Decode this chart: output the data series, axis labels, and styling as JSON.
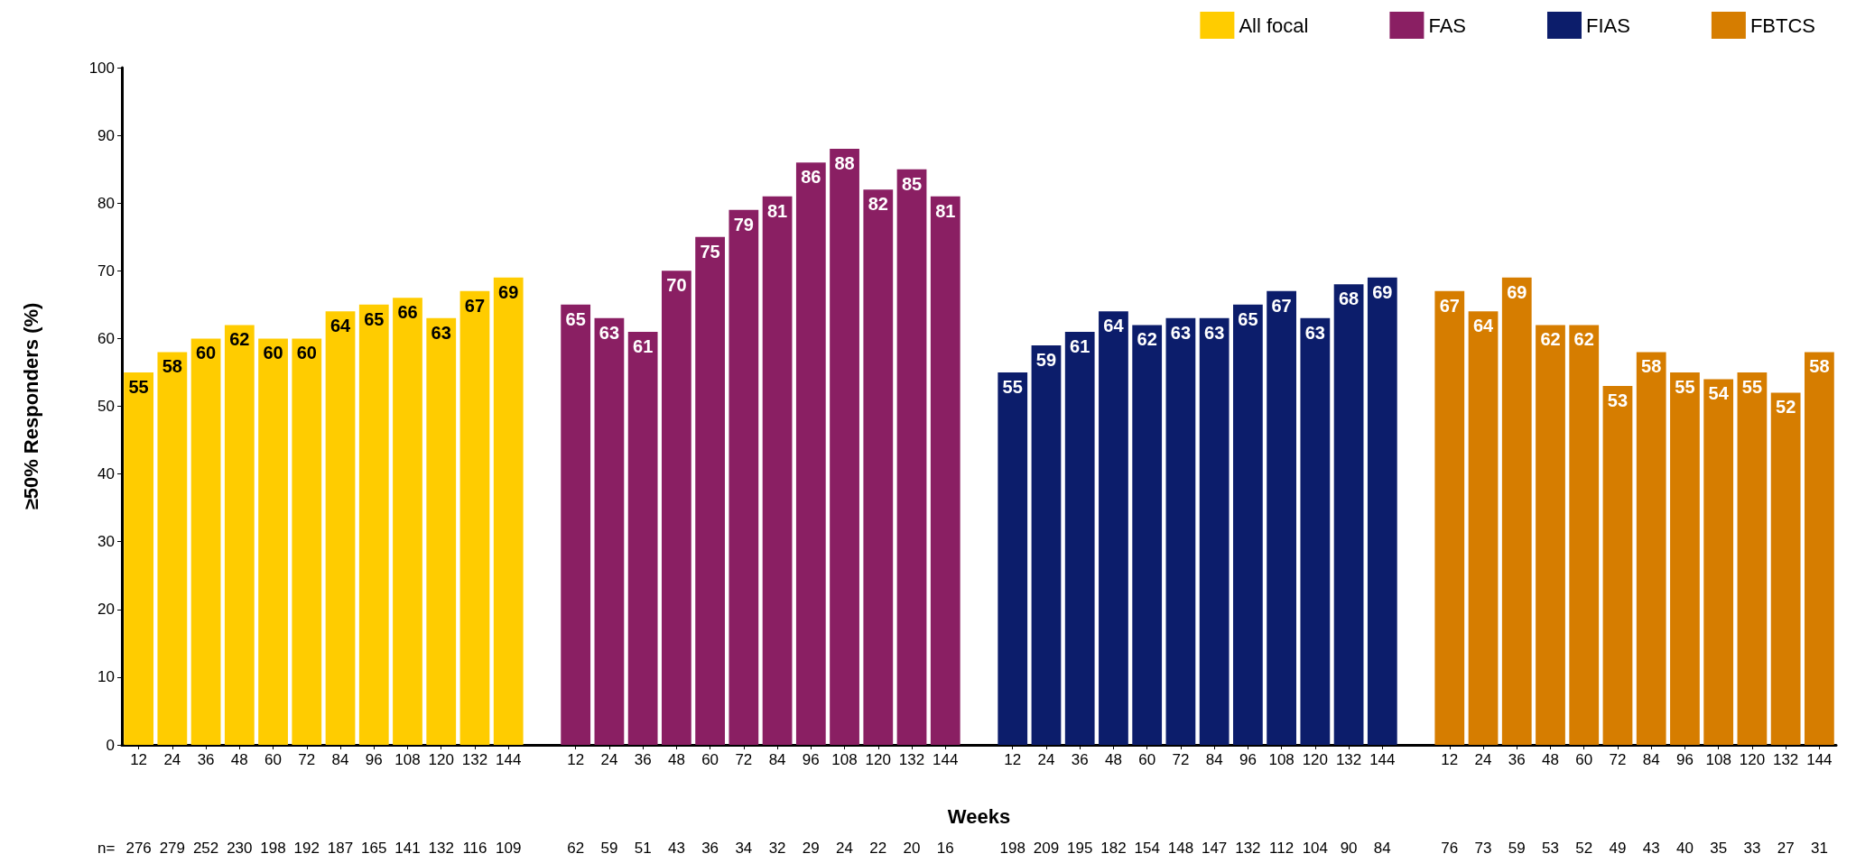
{
  "chart_data": {
    "type": "bar",
    "xlabel": "Weeks",
    "ylabel": "≥50% Responders (%)",
    "categories": [
      "12",
      "24",
      "36",
      "48",
      "60",
      "72",
      "84",
      "96",
      "108",
      "120",
      "132",
      "144",
      null,
      "12",
      "24",
      "36",
      "48",
      "60",
      "72",
      "84",
      "96",
      "108",
      "120",
      "132",
      "144",
      null,
      "12",
      "24",
      "36",
      "48",
      "60",
      "72",
      "84",
      "96",
      "108",
      "120",
      "132",
      "144",
      null,
      "12",
      "24",
      "36",
      "48",
      "60",
      "72",
      "84",
      "96",
      "108",
      "120",
      "132",
      "144"
    ],
    "series": [
      {
        "name": "All focal",
        "color": "#ffcc00",
        "values": [
          55,
          58,
          60,
          62,
          60,
          60,
          64,
          65,
          66,
          63,
          67,
          69,
          null,
          null,
          null,
          null,
          null,
          null,
          null,
          null,
          null,
          null,
          null,
          null,
          null,
          null,
          null,
          null,
          null,
          null,
          null,
          null,
          null,
          null,
          null,
          null,
          null,
          null,
          null,
          null,
          null,
          null,
          null,
          null,
          null,
          null,
          null,
          null,
          null,
          null,
          null
        ]
      },
      {
        "name": "FAS",
        "color": "#8a1f63",
        "values": [
          null,
          null,
          null,
          null,
          null,
          null,
          null,
          null,
          null,
          null,
          null,
          null,
          null,
          65,
          63,
          61,
          70,
          75,
          79,
          81,
          86,
          88,
          82,
          85,
          81,
          null,
          null,
          null,
          null,
          null,
          null,
          null,
          null,
          null,
          null,
          null,
          null,
          null,
          null,
          null,
          null,
          null,
          null,
          null,
          null,
          null,
          null,
          null,
          null,
          null,
          null
        ]
      },
      {
        "name": "FIAS",
        "color": "#0c1d6b",
        "values": [
          null,
          null,
          null,
          null,
          null,
          null,
          null,
          null,
          null,
          null,
          null,
          null,
          null,
          null,
          null,
          null,
          null,
          null,
          null,
          null,
          null,
          null,
          null,
          null,
          null,
          null,
          55,
          59,
          61,
          64,
          62,
          63,
          63,
          65,
          67,
          63,
          68,
          69,
          null,
          null,
          null,
          null,
          null,
          null,
          null,
          null,
          null,
          null,
          null,
          null,
          null
        ]
      },
      {
        "name": "FBTCS",
        "color": "#d67d00",
        "values": [
          null,
          null,
          null,
          null,
          null,
          null,
          null,
          null,
          null,
          null,
          null,
          null,
          null,
          null,
          null,
          null,
          null,
          null,
          null,
          null,
          null,
          null,
          null,
          null,
          null,
          null,
          null,
          null,
          null,
          null,
          null,
          null,
          null,
          null,
          null,
          null,
          null,
          null,
          null,
          67,
          64,
          69,
          62,
          62,
          53,
          58,
          55,
          54,
          55,
          52,
          58
        ]
      }
    ],
    "ylim": [
      0,
      100
    ],
    "yticks": [
      0,
      10,
      20,
      30,
      40,
      50,
      60,
      70,
      80,
      90,
      100
    ],
    "grid": false,
    "legend": "top right",
    "data_labels": true,
    "annotations": [
      "n=",
      "276",
      "279",
      "252",
      "230",
      "198",
      "192",
      "187",
      "165",
      "141",
      "132",
      "116",
      "109",
      "62",
      "59",
      "51",
      "43",
      "36",
      "34",
      "32",
      "29",
      "24",
      "22",
      "20",
      "16",
      "198",
      "209",
      "195",
      "182",
      "154",
      "148",
      "147",
      "132",
      "112",
      "104",
      "90",
      "84",
      "76",
      "73",
      "59",
      "53",
      "52",
      "49",
      "43",
      "40",
      "35",
      "33",
      "27",
      "31"
    ]
  }
}
